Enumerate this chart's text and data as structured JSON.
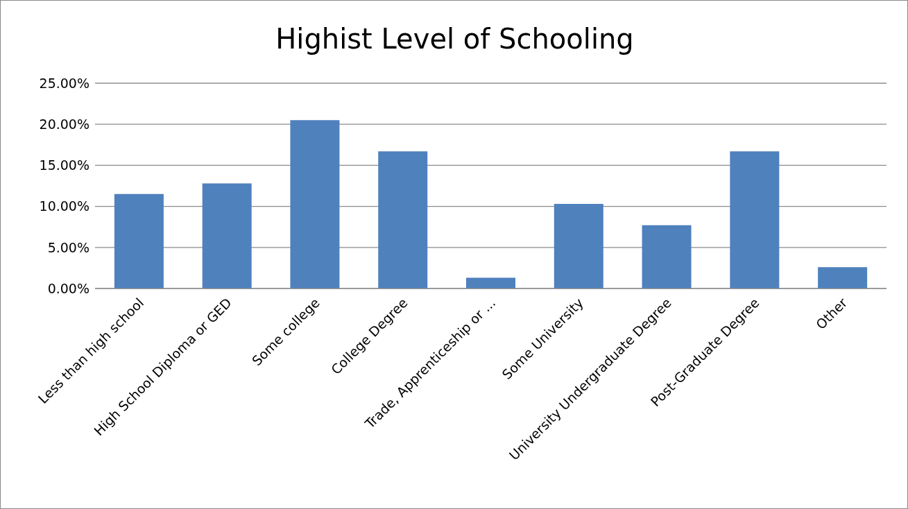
{
  "chart_data": {
    "type": "bar",
    "title": "Highist Level of Schooling",
    "categories": [
      "Less than high school",
      "High School Diploma or GED",
      "Some college",
      "College Degree",
      "Trade, Apprenticeship or ...",
      "Some University",
      "University Undergraduate Degree",
      "Post-Graduate Degree",
      "Other"
    ],
    "values": [
      11.5,
      12.8,
      20.5,
      16.7,
      1.3,
      10.3,
      7.7,
      16.7,
      2.6
    ],
    "color": "#4f81bd",
    "ylim": [
      0,
      25
    ],
    "yticks": [
      {
        "value": 0,
        "label": "0.00%"
      },
      {
        "value": 5,
        "label": "5.00%"
      },
      {
        "value": 10,
        "label": "10.00%"
      },
      {
        "value": 15,
        "label": "15.00%"
      },
      {
        "value": 20,
        "label": "20.00%"
      },
      {
        "value": 25,
        "label": "25.00%"
      }
    ],
    "grid": "y",
    "legend": false
  }
}
